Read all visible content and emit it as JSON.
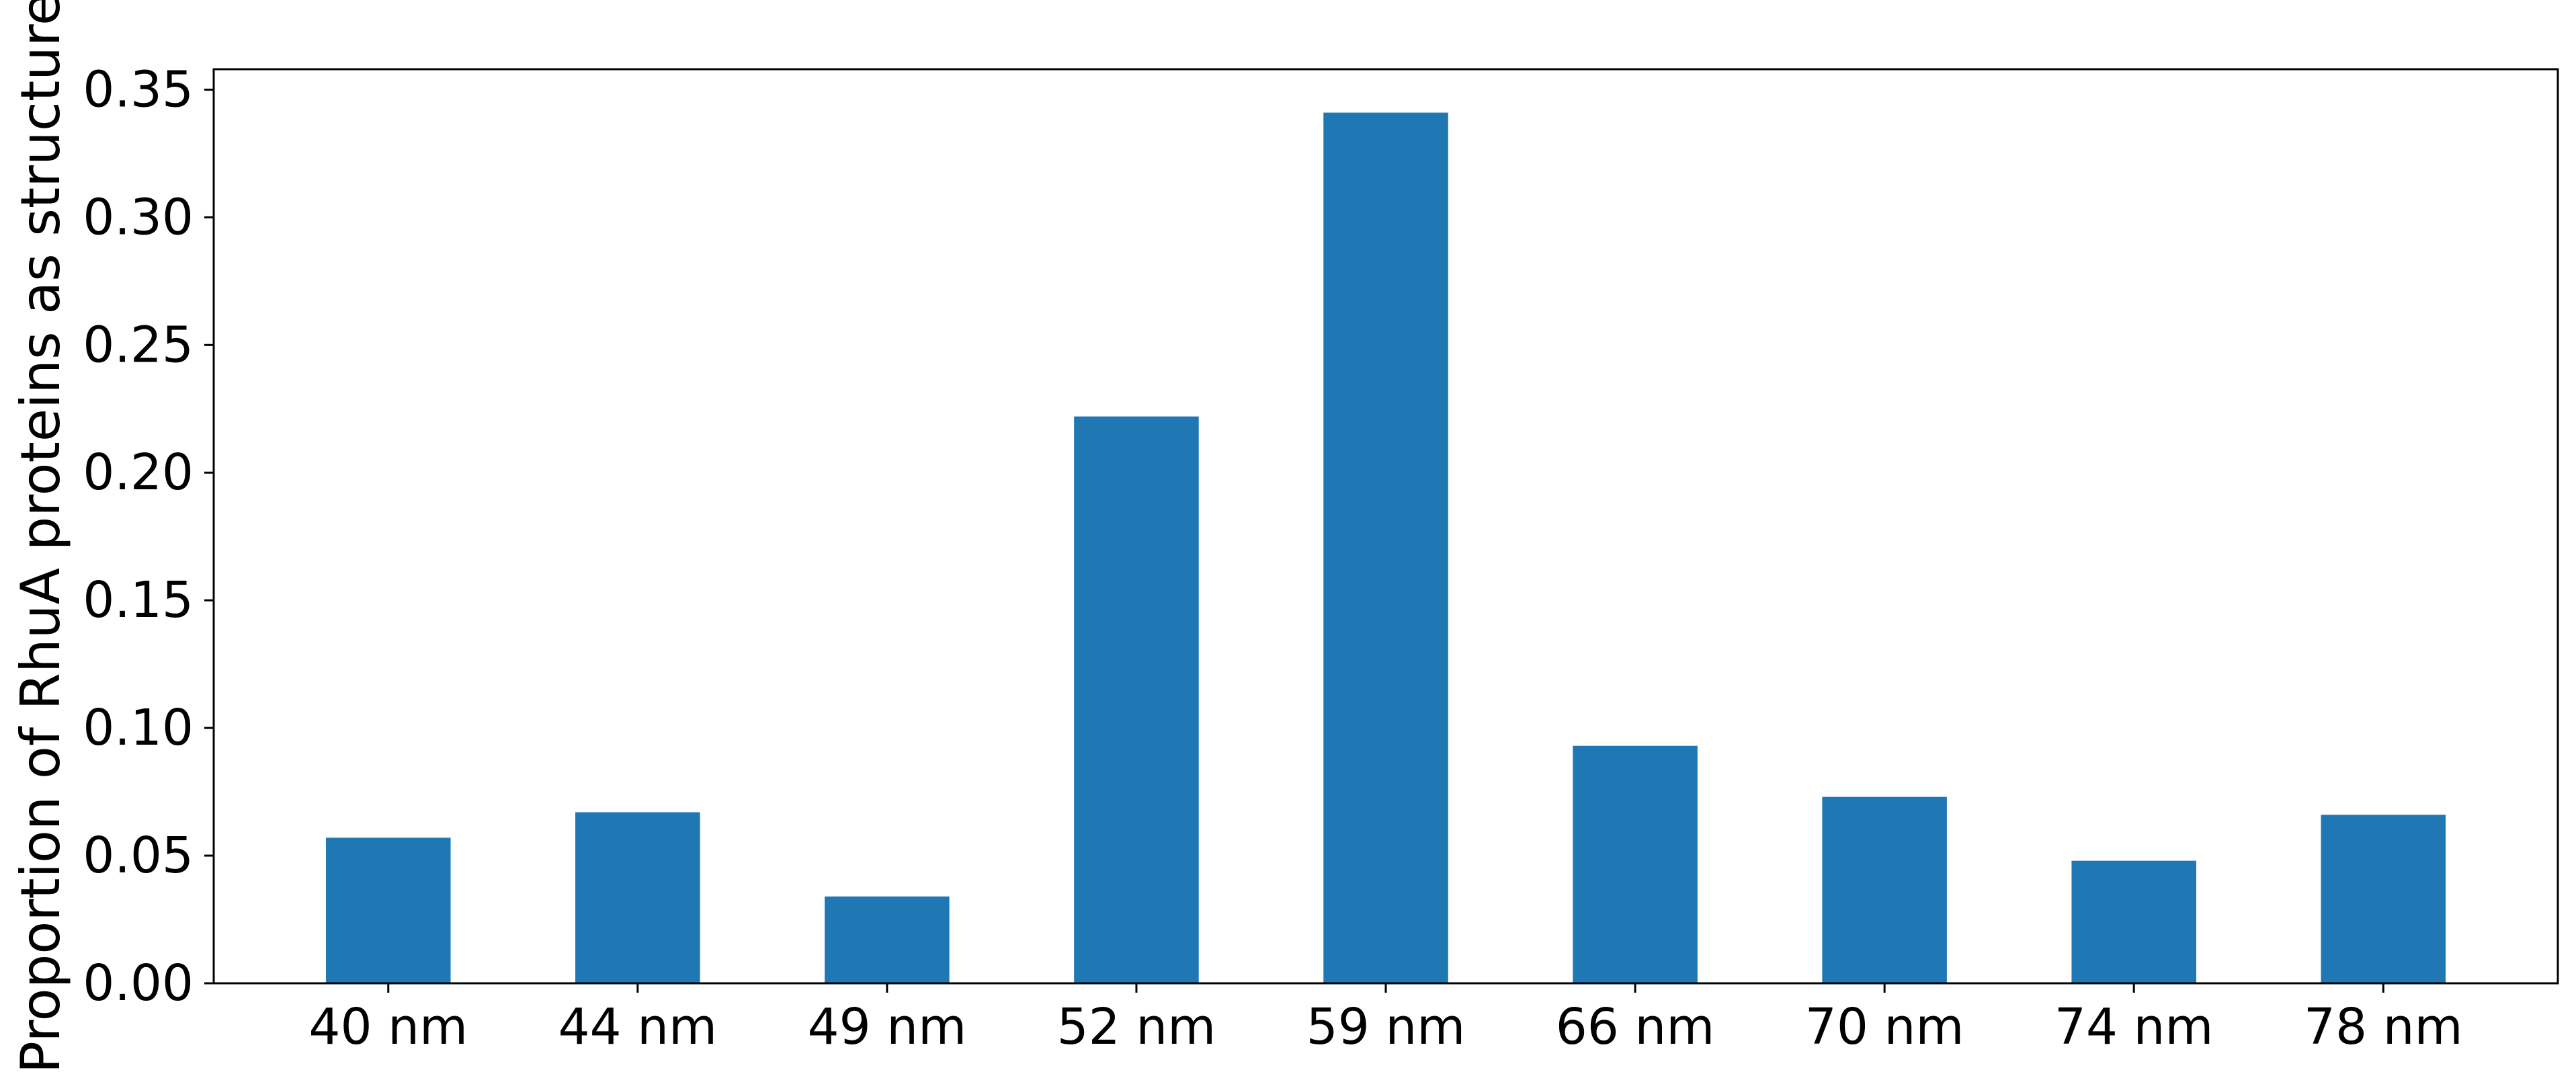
{
  "chart_data": {
    "type": "bar",
    "title": "",
    "xlabel": "",
    "ylabel": "Proportion of RhuA proteins as structure",
    "categories": [
      "40 nm",
      "44 nm",
      "49 nm",
      "52 nm",
      "59 nm",
      "66 nm",
      "70 nm",
      "74 nm",
      "78 nm"
    ],
    "values": [
      0.057,
      0.067,
      0.034,
      0.222,
      0.341,
      0.093,
      0.073,
      0.048,
      0.066
    ],
    "ylim": [
      0,
      0.358
    ],
    "yticks": [
      0.0,
      0.05,
      0.1,
      0.15,
      0.2,
      0.25,
      0.3,
      0.35
    ],
    "ytick_labels": [
      "0.00",
      "0.05",
      "0.10",
      "0.15",
      "0.20",
      "0.25",
      "0.30",
      "0.35"
    ],
    "grid": false,
    "legend": "none",
    "colors": {
      "bar": "#1f77b4",
      "axes": "#000000",
      "background": "#ffffff"
    }
  }
}
